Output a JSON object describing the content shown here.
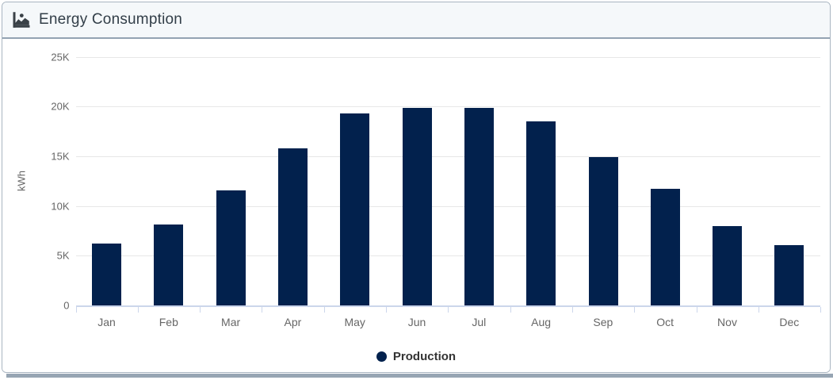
{
  "card": {
    "title": "Energy Consumption"
  },
  "legend": {
    "label": "Production"
  },
  "y_axis": {
    "title": "kWh"
  },
  "colors": {
    "bar": "#02214d",
    "gridline": "#e7e7e7",
    "axis_line": "#ccd6eb",
    "axis_label_text": "#666666",
    "legend_text": "#333333",
    "title_text": "#323e48",
    "header_bg": "#f5f8fa",
    "header_border": "#94a3b2",
    "card_border": "#a9b5c1",
    "divider": "#97a5b3"
  },
  "chart_data": {
    "type": "bar",
    "title": "Energy Consumption",
    "categories": [
      "Jan",
      "Feb",
      "Mar",
      "Apr",
      "May",
      "Jun",
      "Jul",
      "Aug",
      "Sep",
      "Oct",
      "Nov",
      "Dec"
    ],
    "series": [
      {
        "name": "Production",
        "values": [
          6200,
          8100,
          11600,
          15800,
          19300,
          19900,
          19900,
          18500,
          14900,
          11700,
          8000,
          6100
        ]
      }
    ],
    "xlabel": "",
    "ylabel": "kWh",
    "ylim": [
      0,
      25000
    ],
    "yticks": [
      {
        "label": "0",
        "value": 0
      },
      {
        "label": "5K",
        "value": 5000
      },
      {
        "label": "10K",
        "value": 10000
      },
      {
        "label": "15K",
        "value": 15000
      },
      {
        "label": "20K",
        "value": 20000
      },
      {
        "label": "25K",
        "value": 25000
      }
    ],
    "grid": true,
    "legend_position": "bottom"
  }
}
